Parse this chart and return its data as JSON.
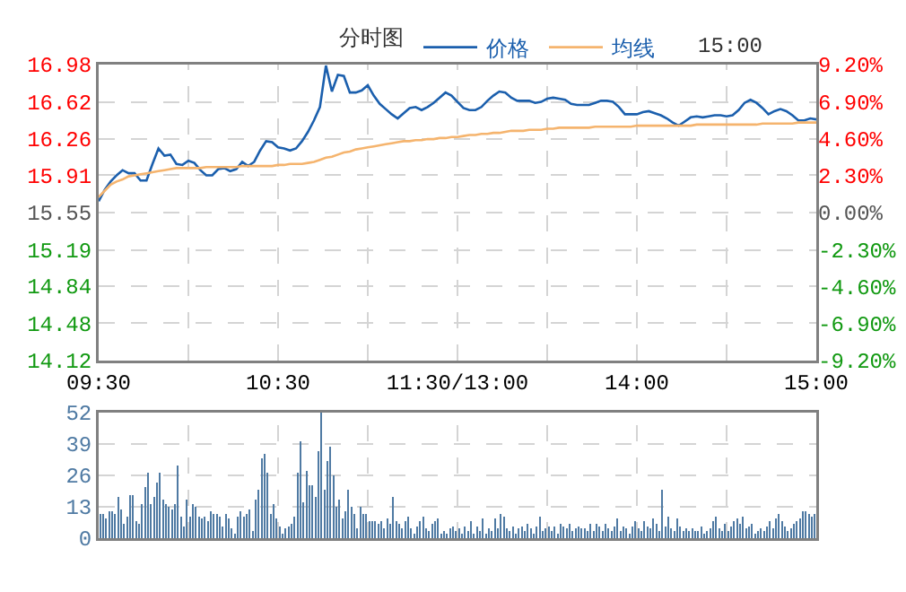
{
  "chart_data": [
    {
      "type": "line",
      "title": "分时图",
      "annotations": [
        "15:00"
      ],
      "legend": "top",
      "grid": true,
      "categories": [
        "09:30",
        null,
        null,
        null,
        null,
        null,
        null,
        null,
        null,
        null,
        null,
        null,
        null,
        null,
        null,
        null,
        null,
        null,
        null,
        null,
        null,
        null,
        null,
        null,
        null,
        null,
        null,
        null,
        null,
        null,
        "10:30",
        null,
        null,
        null,
        null,
        null,
        null,
        null,
        null,
        null,
        null,
        null,
        null,
        null,
        null,
        null,
        null,
        null,
        null,
        null,
        null,
        null,
        null,
        null,
        null,
        null,
        null,
        null,
        null,
        null,
        "11:30/13:00",
        null,
        null,
        null,
        null,
        null,
        null,
        null,
        null,
        null,
        null,
        null,
        null,
        null,
        null,
        null,
        null,
        null,
        null,
        null,
        null,
        null,
        null,
        null,
        null,
        null,
        null,
        null,
        null,
        null,
        "14:00",
        null,
        null,
        null,
        null,
        null,
        null,
        null,
        null,
        null,
        null,
        null,
        null,
        null,
        null,
        null,
        null,
        null,
        null,
        null,
        null,
        null,
        null,
        null,
        null,
        null,
        null,
        null,
        null,
        null,
        "15:00"
      ],
      "ylim": [
        14.12,
        16.98
      ],
      "yticks": [
        14.12,
        14.48,
        14.84,
        15.19,
        15.55,
        15.91,
        16.26,
        16.62,
        16.98
      ],
      "y2lim": [
        -9.2,
        9.2
      ],
      "y2ticks": [
        {
          "value": -9.2,
          "label": "-9.20%"
        },
        {
          "value": -6.9,
          "label": "-6.90%"
        },
        {
          "value": -4.6,
          "label": "-4.60%"
        },
        {
          "value": -2.3,
          "label": "-2.30%"
        },
        {
          "value": 0,
          "label": "0.00%"
        },
        {
          "value": 2.3,
          "label": "2.30%"
        },
        {
          "value": 4.6,
          "label": "4.60%"
        },
        {
          "value": 6.9,
          "label": "6.90%"
        },
        {
          "value": 9.2,
          "label": "9.20%"
        }
      ],
      "series": [
        {
          "name": "价格",
          "color": "#1b5fad",
          "values": [
            15.66,
            15.77,
            15.85,
            15.91,
            15.96,
            15.93,
            15.93,
            15.86,
            15.86,
            16.02,
            16.17,
            16.1,
            16.11,
            16.02,
            16.01,
            16.05,
            16.03,
            15.96,
            15.91,
            15.91,
            15.97,
            15.98,
            15.95,
            15.97,
            16.04,
            16.0,
            16.04,
            16.15,
            16.24,
            16.23,
            16.18,
            16.17,
            16.15,
            16.17,
            16.24,
            16.33,
            16.44,
            16.57,
            16.97,
            16.72,
            16.88,
            16.87,
            16.71,
            16.71,
            16.73,
            16.78,
            16.68,
            16.6,
            16.55,
            16.5,
            16.46,
            16.51,
            16.56,
            16.57,
            16.54,
            16.57,
            16.61,
            16.66,
            16.71,
            16.68,
            16.62,
            16.56,
            16.54,
            16.54,
            16.57,
            16.63,
            16.68,
            16.72,
            16.71,
            16.66,
            16.63,
            16.63,
            16.63,
            16.61,
            16.62,
            16.65,
            16.66,
            16.65,
            16.64,
            16.6,
            16.59,
            16.59,
            16.59,
            16.61,
            16.63,
            16.63,
            16.62,
            16.57,
            16.5,
            16.5,
            16.5,
            16.52,
            16.53,
            16.51,
            16.49,
            16.46,
            16.42,
            16.39,
            16.43,
            16.47,
            16.48,
            16.47,
            16.48,
            16.49,
            16.49,
            16.48,
            16.49,
            16.54,
            16.61,
            16.64,
            16.61,
            16.56,
            16.5,
            16.53,
            16.55,
            16.53,
            16.49,
            16.44,
            16.44,
            16.46,
            16.45
          ]
        },
        {
          "name": "均线",
          "color": "#f5b46e",
          "values": [
            15.7,
            15.76,
            15.82,
            15.85,
            15.87,
            15.9,
            15.91,
            15.92,
            15.93,
            15.94,
            15.95,
            15.96,
            15.97,
            15.98,
            15.98,
            15.98,
            15.98,
            15.98,
            15.99,
            15.99,
            15.99,
            15.99,
            15.99,
            15.99,
            16.0,
            16.0,
            16.0,
            16.0,
            16.0,
            16.0,
            16.01,
            16.01,
            16.02,
            16.02,
            16.02,
            16.03,
            16.04,
            16.06,
            16.08,
            16.09,
            16.11,
            16.13,
            16.14,
            16.16,
            16.17,
            16.18,
            16.19,
            16.2,
            16.21,
            16.22,
            16.23,
            16.24,
            16.24,
            16.25,
            16.25,
            16.26,
            16.26,
            16.27,
            16.27,
            16.28,
            16.28,
            16.29,
            16.3,
            16.3,
            16.31,
            16.31,
            16.32,
            16.32,
            16.33,
            16.34,
            16.34,
            16.34,
            16.35,
            16.35,
            16.35,
            16.36,
            16.36,
            16.37,
            16.37,
            16.37,
            16.37,
            16.37,
            16.37,
            16.38,
            16.38,
            16.38,
            16.38,
            16.38,
            16.38,
            16.38,
            16.39,
            16.39,
            16.39,
            16.39,
            16.39,
            16.39,
            16.39,
            16.39,
            16.39,
            16.39,
            16.4,
            16.4,
            16.4,
            16.4,
            16.4,
            16.4,
            16.4,
            16.4,
            16.4,
            16.4,
            16.4,
            16.41,
            16.41,
            16.41,
            16.41,
            16.41,
            16.41,
            16.42,
            16.42,
            16.42,
            16.42
          ]
        }
      ]
    },
    {
      "type": "bar",
      "color": "#4f7aa3",
      "grid": true,
      "tick_labels": "y",
      "ylim": [
        0,
        52
      ],
      "yticks": [
        0,
        13,
        26,
        39,
        52
      ],
      "categories": [
        null,
        null,
        null,
        null,
        null,
        null,
        null,
        null,
        null,
        null,
        null,
        null,
        null,
        null,
        null,
        null,
        null,
        null,
        null,
        null,
        null,
        null,
        null,
        null,
        null,
        null,
        null,
        null,
        null,
        null,
        null,
        null,
        null,
        null,
        null,
        null,
        null,
        null,
        null,
        null,
        null,
        null,
        null,
        null,
        null,
        null,
        null,
        null,
        null,
        null,
        null,
        null,
        null,
        null,
        null,
        null,
        null,
        null,
        null,
        null,
        null,
        null,
        null,
        null,
        null,
        null,
        null,
        null,
        null,
        null,
        null,
        null,
        null,
        null,
        null,
        null,
        null,
        null,
        null,
        null,
        null,
        null,
        null,
        null,
        null,
        null,
        null,
        null,
        null,
        null,
        null,
        null,
        null,
        null,
        null,
        null,
        null,
        null,
        null,
        null,
        null,
        null,
        null,
        null,
        null,
        null,
        null,
        null,
        null,
        null,
        null,
        null,
        null,
        null,
        null,
        null,
        null,
        null,
        null,
        null,
        null,
        null,
        null,
        null,
        null,
        null,
        null,
        null,
        null,
        null,
        null,
        null,
        null,
        null,
        null,
        null,
        null,
        null,
        null,
        null,
        null,
        null,
        null,
        null,
        null,
        null,
        null,
        null,
        null,
        null,
        null,
        null,
        null,
        null,
        null,
        null,
        null,
        null,
        null,
        null,
        null,
        null,
        null,
        null,
        null,
        null,
        null,
        null,
        null,
        null,
        null,
        null,
        null,
        null,
        null,
        null,
        null,
        null,
        null,
        null,
        null,
        null,
        null,
        null,
        null,
        null,
        null,
        null,
        null,
        null,
        null,
        null,
        null,
        null,
        null,
        null,
        null,
        null,
        null,
        null,
        null,
        null,
        null,
        null,
        null,
        null,
        null,
        null,
        null,
        null,
        null,
        null,
        null,
        null,
        null,
        null,
        null,
        null,
        null,
        null,
        null,
        null,
        null,
        null,
        null,
        null,
        null,
        null,
        null,
        null,
        null,
        null,
        null,
        null,
        null,
        null,
        null,
        null,
        null,
        null
      ],
      "values": [
        10,
        10,
        8,
        11,
        11,
        10,
        17,
        12,
        6,
        9,
        18,
        18,
        7,
        6,
        14,
        21,
        27,
        14,
        17,
        23,
        27,
        16,
        14,
        13,
        12,
        14,
        30,
        9,
        5,
        16,
        9,
        14,
        13,
        9,
        8,
        9,
        7,
        11,
        10,
        10,
        9,
        5,
        10,
        8,
        4,
        2,
        9,
        11,
        9,
        10,
        12,
        3,
        16,
        20,
        33,
        35,
        27,
        10,
        14,
        8,
        5,
        2,
        4,
        5,
        6,
        9,
        27,
        40,
        15,
        28,
        22,
        22,
        17,
        36,
        52,
        20,
        32,
        38,
        26,
        13,
        16,
        8,
        11,
        20,
        13,
        10,
        4,
        13,
        10,
        10,
        7,
        7,
        7,
        6,
        7,
        4,
        8,
        6,
        17,
        7,
        6,
        4,
        7,
        9,
        4,
        2,
        5,
        7,
        9,
        4,
        3,
        6,
        7,
        8,
        2,
        3,
        2,
        4,
        5,
        3,
        4,
        2,
        5,
        3,
        7,
        2,
        5,
        3,
        8,
        2,
        4,
        3,
        8,
        4,
        10,
        9,
        4,
        3,
        5,
        2,
        4,
        5,
        3,
        6,
        4,
        2,
        5,
        9,
        3,
        4,
        5,
        3,
        5,
        2,
        6,
        5,
        4,
        6,
        3,
        4,
        5,
        4,
        4,
        3,
        6,
        3,
        6,
        5,
        3,
        6,
        4,
        3,
        5,
        8,
        3,
        5,
        4,
        2,
        5,
        7,
        4,
        3,
        7,
        5,
        4,
        8,
        6,
        3,
        20,
        5,
        9,
        4,
        3,
        8,
        5,
        3,
        4,
        3,
        4,
        3,
        3,
        5,
        2,
        3,
        4,
        7,
        9,
        4,
        3,
        6,
        3,
        5,
        7,
        8,
        6,
        9,
        4,
        5,
        6,
        2,
        3,
        4,
        3,
        5,
        7,
        4,
        8,
        10,
        7,
        5,
        3,
        4,
        6,
        7,
        8,
        11,
        11,
        10,
        9,
        10
      ]
    }
  ]
}
